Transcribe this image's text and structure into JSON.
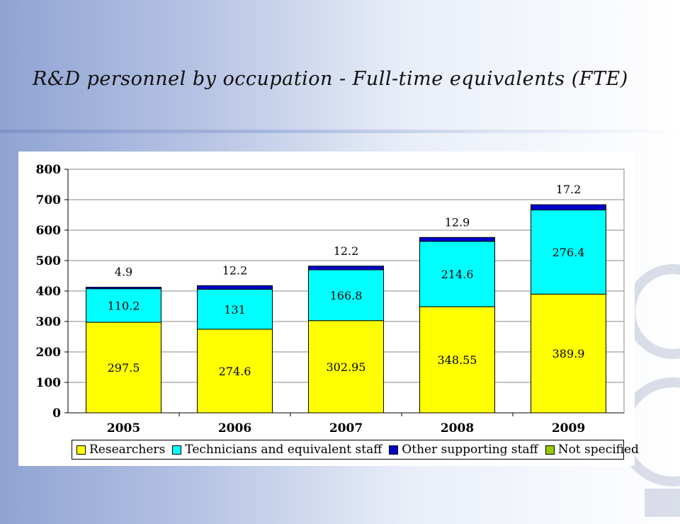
{
  "title": "R&D personnel by occupation - Full-time equivalents (FTE)",
  "chart_data": {
    "type": "bar",
    "stacked": true,
    "categories": [
      "2005",
      "2006",
      "2007",
      "2008",
      "2009"
    ],
    "series": [
      {
        "name": "Researchers",
        "color": "#ffff00",
        "values": [
          297.5,
          274.6,
          302.95,
          348.55,
          389.9
        ],
        "labels": [
          "297.5",
          "274.6",
          "302.95",
          "348.55",
          "389.9"
        ]
      },
      {
        "name": "Technicians and equivalent staff",
        "color": "#00ffff",
        "values": [
          110.2,
          131,
          166.8,
          214.6,
          276.4
        ],
        "labels": [
          "110.2",
          "131",
          "166.8",
          "214.6",
          "276.4"
        ]
      },
      {
        "name": "Other supporting staff",
        "color": "#0000cc",
        "values": [
          4.9,
          12.2,
          12.2,
          12.9,
          17.2
        ],
        "labels": [
          "4.9",
          "12.2",
          "12.2",
          "12.9",
          "17.2"
        ]
      },
      {
        "name": "Not specified",
        "color": "#99cc00",
        "values": [
          0,
          0,
          0,
          0,
          0
        ]
      }
    ],
    "ylim": [
      0,
      800
    ],
    "yticks": [
      "0",
      "100",
      "200",
      "300",
      "400",
      "500",
      "600",
      "700",
      "800"
    ],
    "grid": true,
    "legend_position": "bottom"
  }
}
